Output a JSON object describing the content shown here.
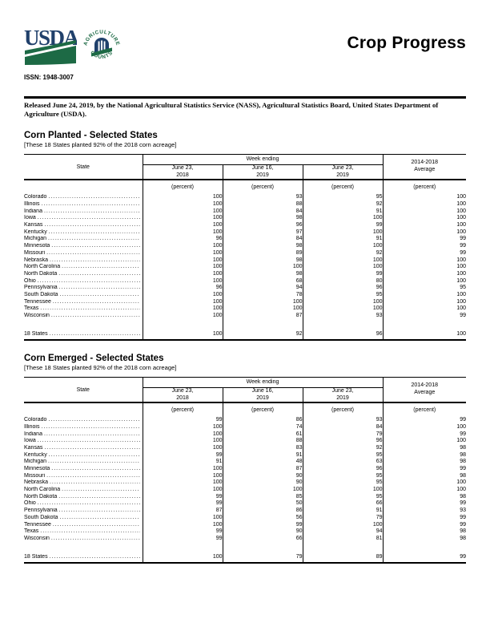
{
  "page": {
    "title": "Crop Progress",
    "issn": "ISSN: 1948-3007",
    "released": "Released June 24, 2019, by the National Agricultural Statistics Service (NASS), Agricultural Statistics Board, United States Department of Agriculture (USDA).",
    "logo": {
      "wordmark": "USDA",
      "seal_text_top": "AGRICULTURE",
      "seal_text_bottom": "COUNTS",
      "navy": "#20406b",
      "green": "#1d6a45"
    }
  },
  "table_header": {
    "state": "State",
    "week_ending": "Week ending",
    "col_2018": {
      "line1": "June 23,",
      "line2": "2018"
    },
    "col_prev": {
      "line1": "June 16,",
      "line2": "2019"
    },
    "col_curr": {
      "line1": "June 23,",
      "line2": "2019"
    },
    "avg": {
      "line1": "2014-2018",
      "line2": "Average"
    },
    "unit": "(percent)"
  },
  "tables": [
    {
      "title": "Corn Planted - Selected States",
      "note": "[These 18 States planted 92% of the 2018 corn acreage]",
      "rows": [
        {
          "state": "Colorado",
          "values": [
            100,
            93,
            95,
            100
          ]
        },
        {
          "state": "Illinois",
          "values": [
            100,
            88,
            92,
            100
          ]
        },
        {
          "state": "Indiana",
          "values": [
            100,
            84,
            91,
            100
          ]
        },
        {
          "state": "Iowa",
          "values": [
            100,
            98,
            100,
            100
          ]
        },
        {
          "state": "Kansas",
          "values": [
            100,
            96,
            99,
            100
          ]
        },
        {
          "state": "Kentucky",
          "values": [
            100,
            97,
            100,
            100
          ]
        },
        {
          "state": "Michigan",
          "values": [
            96,
            84,
            91,
            99
          ]
        },
        {
          "state": "Minnesota",
          "values": [
            100,
            98,
            100,
            99
          ]
        },
        {
          "state": "Missouri",
          "values": [
            100,
            89,
            92,
            99
          ]
        },
        {
          "state": "Nebraska",
          "values": [
            100,
            98,
            100,
            100
          ]
        },
        {
          "state": "North Carolina",
          "values": [
            100,
            100,
            100,
            100
          ]
        },
        {
          "state": "North Dakota",
          "values": [
            100,
            98,
            99,
            100
          ]
        },
        {
          "state": "Ohio",
          "values": [
            100,
            68,
            80,
            100
          ]
        },
        {
          "state": "Pennsylvania",
          "values": [
            96,
            94,
            96,
            95
          ]
        },
        {
          "state": "South Dakota",
          "values": [
            100,
            78,
            95,
            100
          ]
        },
        {
          "state": "Tennessee",
          "values": [
            100,
            100,
            100,
            100
          ]
        },
        {
          "state": "Texas",
          "values": [
            100,
            100,
            100,
            100
          ]
        },
        {
          "state": "Wisconsin",
          "values": [
            100,
            87,
            93,
            99
          ]
        }
      ],
      "total": {
        "state": "18 States",
        "values": [
          100,
          92,
          96,
          100
        ]
      }
    },
    {
      "title": "Corn Emerged - Selected States",
      "note": "[These 18 States planted 92% of the 2018 corn acreage]",
      "rows": [
        {
          "state": "Colorado",
          "values": [
            99,
            86,
            93,
            99
          ]
        },
        {
          "state": "Illinois",
          "values": [
            100,
            74,
            84,
            100
          ]
        },
        {
          "state": "Indiana",
          "values": [
            100,
            61,
            79,
            99
          ]
        },
        {
          "state": "Iowa",
          "values": [
            100,
            88,
            96,
            100
          ]
        },
        {
          "state": "Kansas",
          "values": [
            100,
            83,
            92,
            98
          ]
        },
        {
          "state": "Kentucky",
          "values": [
            99,
            91,
            95,
            98
          ]
        },
        {
          "state": "Michigan",
          "values": [
            91,
            48,
            63,
            98
          ]
        },
        {
          "state": "Minnesota",
          "values": [
            100,
            87,
            96,
            99
          ]
        },
        {
          "state": "Missouri",
          "values": [
            100,
            90,
            95,
            98
          ]
        },
        {
          "state": "Nebraska",
          "values": [
            100,
            90,
            95,
            100
          ]
        },
        {
          "state": "North Carolina",
          "values": [
            100,
            100,
            100,
            100
          ]
        },
        {
          "state": "North Dakota",
          "values": [
            99,
            85,
            95,
            98
          ]
        },
        {
          "state": "Ohio",
          "values": [
            99,
            50,
            66,
            99
          ]
        },
        {
          "state": "Pennsylvania",
          "values": [
            87,
            86,
            91,
            93
          ]
        },
        {
          "state": "South Dakota",
          "values": [
            100,
            56,
            79,
            99
          ]
        },
        {
          "state": "Tennessee",
          "values": [
            100,
            99,
            100,
            99
          ]
        },
        {
          "state": "Texas",
          "values": [
            99,
            90,
            94,
            98
          ]
        },
        {
          "state": "Wisconsin",
          "values": [
            99,
            66,
            81,
            98
          ]
        }
      ],
      "total": {
        "state": "18 States",
        "values": [
          100,
          79,
          89,
          99
        ]
      }
    }
  ]
}
